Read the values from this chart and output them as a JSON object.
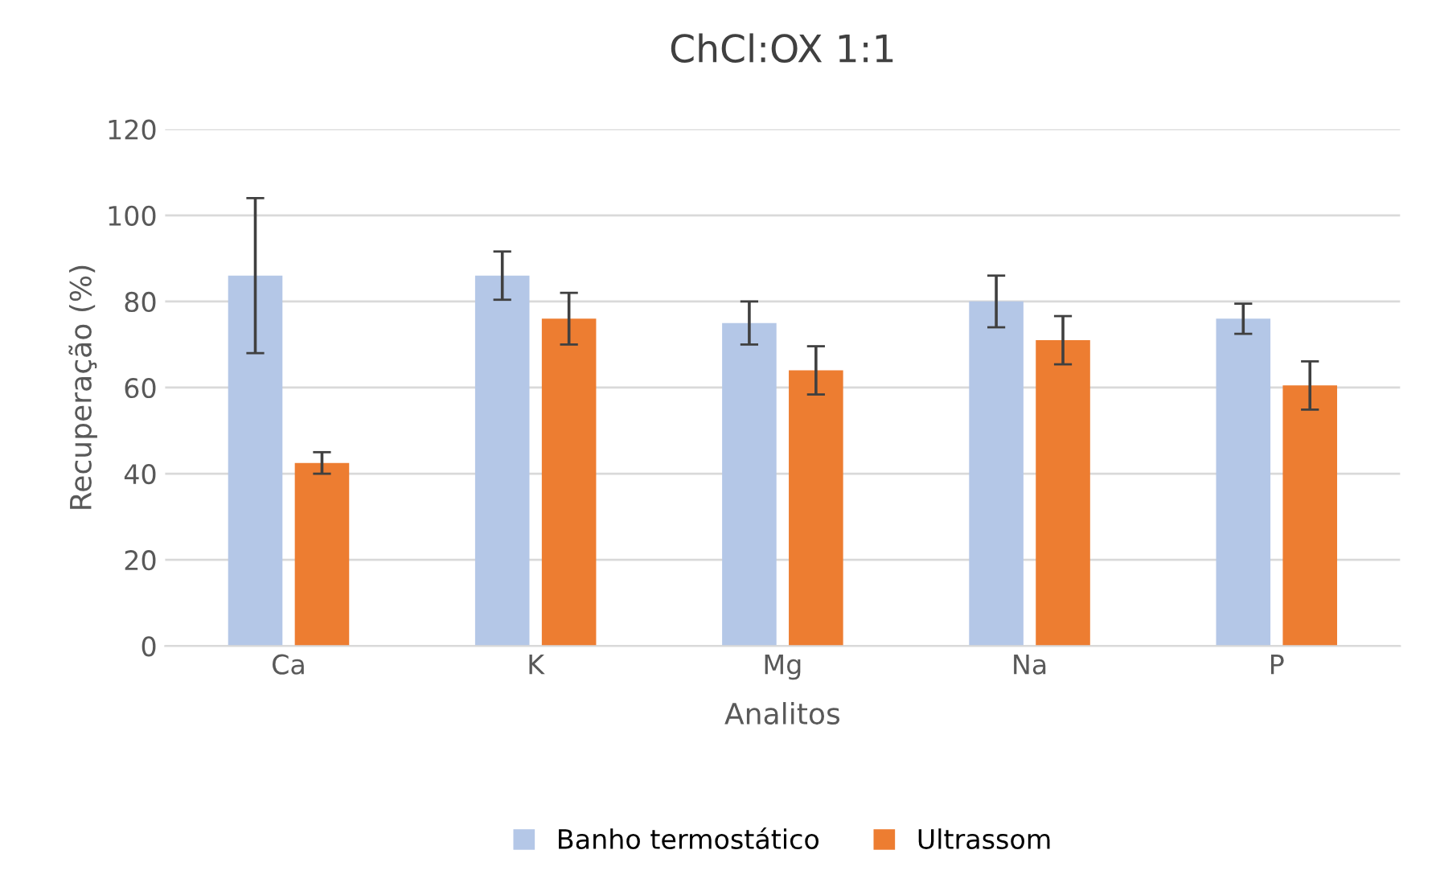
{
  "chart_data": {
    "type": "bar",
    "title": "ChCl:OX 1:1",
    "xlabel": "Analitos",
    "ylabel": "Recuperação (%)",
    "categories": [
      "Ca",
      "K",
      "Mg",
      "Na",
      "P"
    ],
    "series": [
      {
        "name": "Banho termostático",
        "color": "#b4c7e7",
        "values": [
          86,
          86,
          75,
          80,
          76
        ],
        "errors": [
          18,
          5.6,
          5,
          6,
          3.5
        ]
      },
      {
        "name": "Ultrassom",
        "color": "#ed7d31",
        "values": [
          42.5,
          76,
          64,
          71,
          60.5
        ],
        "errors": [
          2.5,
          6,
          5.6,
          5.6,
          5.6
        ]
      }
    ],
    "ylim": [
      0,
      120
    ],
    "yticks": [
      0,
      20,
      40,
      60,
      80,
      100,
      120
    ],
    "grid": "y",
    "legend": "bottom"
  }
}
